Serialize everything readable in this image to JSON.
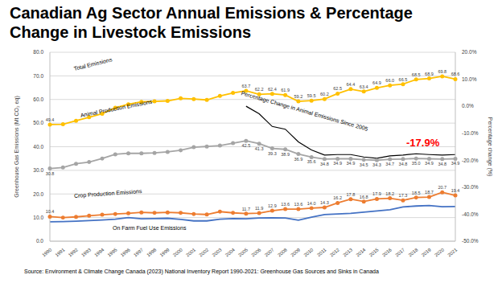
{
  "chart_data": {
    "type": "line",
    "title": "Canadian Ag Sector Annual Emissions & Percentage Change in Livestock Emissions",
    "y_label": "Greenhouse Gas Emissions (Mt CO₂ eq)",
    "y2_label": "Percentage change (%)",
    "source": "Source: Environment & Climate Change Canada (2023) National Inventory Report 1990-2021: Greenhouse Gas Sources and Sinks in Canada",
    "annotations": [
      {
        "text": "-17.9%",
        "color": "#ff0000"
      }
    ],
    "grid": true,
    "categories": [
      "1990",
      "1991",
      "1992",
      "1993",
      "1994",
      "1995",
      "1996",
      "1997",
      "1998",
      "1999",
      "2000",
      "2001",
      "2002",
      "2003",
      "2004",
      "2005",
      "2006",
      "2007",
      "2008",
      "2009",
      "2010",
      "2011",
      "2012",
      "2013",
      "2014",
      "2015",
      "2016",
      "2017",
      "2018",
      "2019",
      "2020",
      "2021"
    ],
    "ylim": [
      0,
      80
    ],
    "yticks": [
      {
        "value": 0,
        "label": "0.0"
      },
      {
        "value": 10,
        "label": "10.0"
      },
      {
        "value": 20,
        "label": "20.0"
      },
      {
        "value": 30,
        "label": "30.0"
      },
      {
        "value": 40,
        "label": "40.0"
      },
      {
        "value": 50,
        "label": "50.0"
      },
      {
        "value": 60,
        "label": "60.0"
      },
      {
        "value": 70,
        "label": "70.0"
      },
      {
        "value": 80,
        "label": "80.0"
      }
    ],
    "y2lim": [
      -50,
      20
    ],
    "y2ticks": [
      {
        "value": -50,
        "label": "-50.0%"
      },
      {
        "value": -40,
        "label": "-40.0%"
      },
      {
        "value": -30,
        "label": "-30.0%"
      },
      {
        "value": -20,
        "label": "-20.0%"
      },
      {
        "value": -10,
        "label": "-10.0%"
      },
      {
        "value": 0,
        "label": "0.0%"
      },
      {
        "value": 10,
        "label": "10.0%"
      },
      {
        "value": 20,
        "label": "20.0%"
      }
    ],
    "series": [
      {
        "name": "Total Emissions",
        "color": "#ffc000",
        "marker": "circle",
        "line_style": "solid",
        "data_labels": true,
        "values": [
          49.4,
          49.5,
          51.0,
          52.5,
          54.0,
          56.5,
          58.0,
          59.0,
          59.2,
          59.4,
          60.5,
          60.2,
          59.8,
          61.5,
          62.8,
          63.7,
          62.2,
          62.4,
          61.9,
          59.2,
          59.5,
          60.2,
          62.5,
          64.4,
          63.4,
          64.9,
          66.0,
          66.5,
          68.5,
          68.9,
          69.8,
          68.6
        ],
        "value_labels": [
          "49.4",
          null,
          null,
          null,
          null,
          null,
          null,
          null,
          null,
          null,
          null,
          null,
          null,
          null,
          null,
          "63.7",
          "62.2",
          "62.4",
          "61.9",
          "59.2",
          "59.5",
          "60.2",
          "62.5",
          "64.4",
          "63.4",
          "64.9",
          "66.0",
          "66.5",
          "68.5",
          "68.9",
          "69.8",
          "68.6"
        ]
      },
      {
        "name": "Animal Production Emissions",
        "color": "#a5a5a5",
        "marker": "circle",
        "line_style": "solid",
        "data_labels": true,
        "values": [
          30.8,
          31.2,
          32.8,
          33.5,
          35.0,
          36.8,
          37.2,
          37.2,
          37.4,
          37.8,
          38.5,
          39.8,
          40.1,
          40.5,
          41.5,
          42.5,
          41.3,
          39.3,
          38.9,
          36.9,
          35.6,
          34.8,
          34.9,
          34.9,
          34.5,
          34.3,
          34.7,
          34.8,
          35.0,
          34.9,
          34.8,
          34.9
        ],
        "value_labels": [
          "30.8",
          null,
          null,
          null,
          null,
          null,
          null,
          null,
          null,
          null,
          null,
          null,
          null,
          null,
          null,
          "42.5",
          "41.3",
          "39.3",
          "38.9",
          "36.9",
          "35.6",
          "34.8",
          "34.9",
          "34.9",
          "34.5",
          "34.3",
          "34.7",
          "34.8",
          "35.0",
          "34.9",
          "34.8",
          "34.9"
        ]
      },
      {
        "name": "Crop Production Emissions",
        "color": "#ed7d31",
        "marker": "circle",
        "line_style": "solid",
        "data_labels": true,
        "values": [
          10.4,
          10.0,
          10.3,
          10.8,
          11.2,
          11.5,
          11.8,
          12.2,
          12.0,
          12.2,
          12.0,
          11.5,
          11.3,
          12.5,
          12.0,
          11.7,
          11.9,
          12.9,
          13.6,
          13.6,
          14.0,
          14.3,
          16.2,
          17.8,
          16.8,
          17.9,
          18.2,
          17.3,
          18.5,
          18.7,
          20.7,
          19.4
        ],
        "value_labels": [
          "10.4",
          null,
          null,
          null,
          null,
          null,
          null,
          null,
          null,
          null,
          null,
          null,
          null,
          null,
          null,
          "11.7",
          "11.9",
          "12.9",
          "13.6",
          "13.6",
          "14.0",
          "14.3",
          "16.2",
          "17.8",
          "16.8",
          "17.9",
          "18.2",
          "17.3",
          "18.5",
          "18.7",
          "20.7",
          "19.4"
        ]
      },
      {
        "name": "On Farm Fuel Use Emissions",
        "color": "#4472c4",
        "marker": "none",
        "line_style": "solid",
        "values": [
          8.2,
          8.3,
          8.5,
          8.7,
          9.0,
          9.3,
          10.0,
          9.5,
          9.6,
          9.7,
          9.2,
          8.6,
          8.6,
          9.3,
          9.6,
          9.5,
          9.8,
          9.9,
          9.8,
          8.9,
          10.2,
          11.3,
          11.5,
          11.8,
          12.3,
          12.8,
          13.3,
          14.5,
          14.9,
          15.1,
          14.6,
          14.7
        ]
      },
      {
        "name": "Percentage Change in Animal Emissions Since 2005",
        "color": "#000000",
        "marker": "none",
        "line_style": "solid",
        "axis": "y2",
        "values": [
          null,
          null,
          null,
          null,
          null,
          null,
          null,
          null,
          null,
          null,
          null,
          null,
          null,
          null,
          null,
          0.0,
          -2.8,
          -7.5,
          -8.5,
          -13.2,
          -16.2,
          -18.1,
          -17.9,
          -17.9,
          -18.8,
          -19.3,
          -18.4,
          -18.1,
          -17.6,
          -17.9,
          -18.1,
          -17.9
        ]
      }
    ]
  }
}
